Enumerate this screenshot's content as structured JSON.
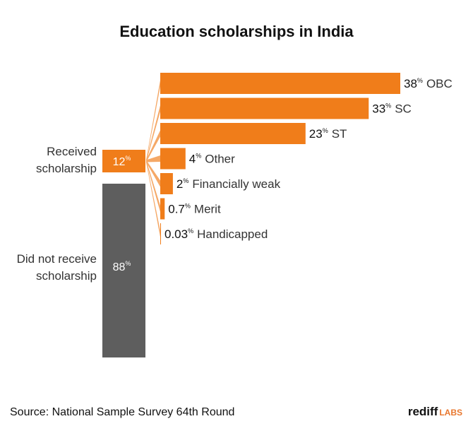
{
  "chart_data": {
    "type": "bar",
    "title": "Education scholarships in India",
    "summary_bars": [
      {
        "name": "Received scholarship",
        "label_lines": [
          "Received",
          "scholarship"
        ],
        "value": 12,
        "value_label": "12",
        "unit": "%"
      },
      {
        "name": "Did not receive scholarship",
        "label_lines": [
          "Did not receive",
          "scholarship"
        ],
        "value": 88,
        "value_label": "88",
        "unit": "%"
      }
    ],
    "breakdown_of": "Received scholarship",
    "categories": [
      "OBC",
      "SC",
      "ST",
      "Other",
      "Financially weak",
      "Merit",
      "Handicapped"
    ],
    "values": [
      38,
      33,
      23,
      4,
      2,
      0.7,
      0.03
    ],
    "value_labels": [
      "38",
      "33",
      "23",
      "4",
      "2",
      "0.7",
      "0.03"
    ],
    "unit": "%",
    "colors": {
      "received": "#f07d1a",
      "not_received": "#5e5e5e",
      "fan": "#f5a866"
    }
  },
  "footer": {
    "source": "Source: National Sample Survey 64th Round",
    "brand_main": "rediff",
    "brand_sub": "LABS"
  }
}
